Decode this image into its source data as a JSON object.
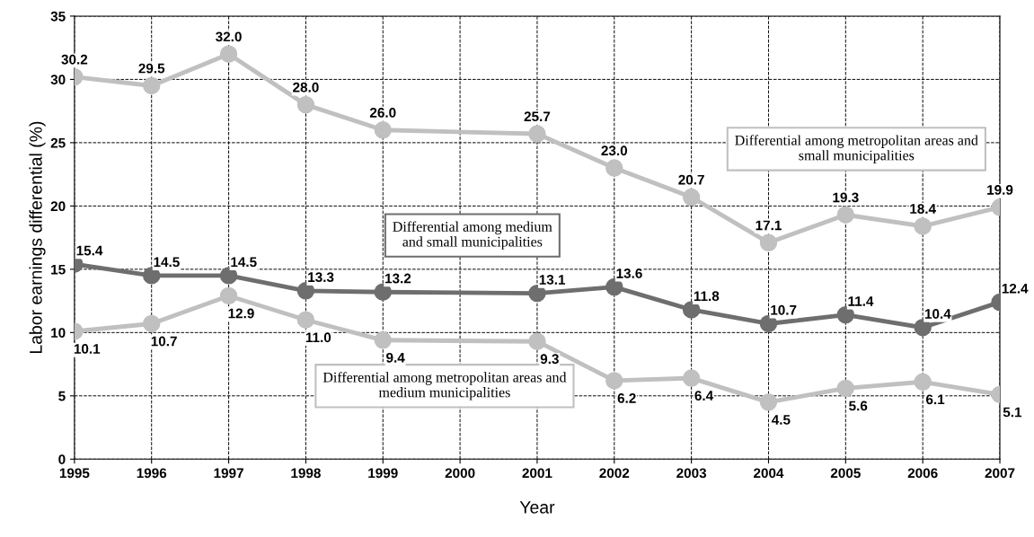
{
  "chart_data": {
    "type": "line",
    "xlabel": "Year",
    "ylabel": "Labor earnings differential (%)",
    "xlim": [
      1995,
      2007
    ],
    "xticks": [
      1995,
      1996,
      1997,
      1998,
      1999,
      2000,
      2001,
      2002,
      2003,
      2004,
      2005,
      2006,
      2007
    ],
    "ylim": [
      0,
      35
    ],
    "yticks": [
      0,
      5,
      10,
      15,
      20,
      25,
      30,
      35
    ],
    "grid": true,
    "legend": false,
    "marker": "circle",
    "line_style": "solid",
    "series": [
      {
        "name": "Differential among metropolitan areas and small municipalities",
        "color": "#c0c0c0",
        "x": [
          1995,
          1996,
          1997,
          1998,
          1999,
          2001,
          2002,
          2003,
          2004,
          2005,
          2006,
          2007
        ],
        "values": [
          30.2,
          29.5,
          32.0,
          28.0,
          26.0,
          25.7,
          23.0,
          20.7,
          17.1,
          19.3,
          18.4,
          19.9
        ],
        "value_labels": [
          "30.2",
          "29.5",
          "32.0",
          "28.0",
          "26.0",
          "25.7",
          "23.0",
          "20.7",
          "17.1",
          "19.3",
          "18.4",
          "19.9"
        ]
      },
      {
        "name": "Differential among medium and small municipalities",
        "color": "#6e6e6e",
        "x": [
          1995,
          1996,
          1997,
          1998,
          1999,
          2001,
          2002,
          2003,
          2004,
          2005,
          2006,
          2007
        ],
        "values": [
          15.4,
          14.5,
          14.5,
          13.3,
          13.2,
          13.1,
          13.6,
          11.8,
          10.7,
          11.4,
          10.4,
          12.4
        ],
        "value_labels": [
          "15.4",
          "14.5",
          "14.5",
          "13.3",
          "13.2",
          "13.1",
          "13.6",
          "11.8",
          "10.7",
          "11.4",
          "10.4",
          "12.4"
        ]
      },
      {
        "name": "Differential among metropolitan areas and medium municipalities",
        "color": "#c0c0c0",
        "x": [
          1995,
          1996,
          1997,
          1998,
          1999,
          2001,
          2002,
          2003,
          2004,
          2005,
          2006,
          2007
        ],
        "values": [
          10.1,
          10.7,
          12.9,
          11.0,
          9.4,
          9.3,
          6.2,
          6.4,
          4.5,
          5.6,
          6.1,
          5.1
        ],
        "value_labels": [
          "10.1",
          "10.7",
          "12.9",
          "11.0",
          "9.4",
          "9.3",
          "6.2",
          "6.4",
          "4.5",
          "5.6",
          "6.1",
          "5.1"
        ]
      }
    ]
  }
}
